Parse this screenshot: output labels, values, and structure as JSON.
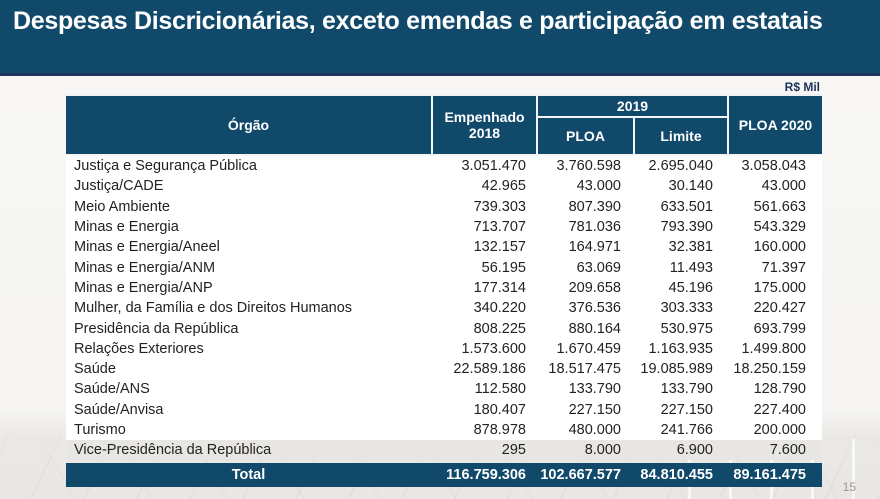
{
  "title": "Despesas Discricionárias, exceto emendas e participação em estatais",
  "unit_label": "R$ Mil",
  "page_number": "15",
  "colors": {
    "accent_blue": "#11496b",
    "title_border": "#1f3459",
    "last_row_bg": "#e8e6e3"
  },
  "table": {
    "headers": {
      "orgao": "Órgão",
      "empenhado_2018": "Empenhado 2018",
      "year_2019": "2019",
      "ploa": "PLOA",
      "limite": "Limite",
      "ploa_2020": "PLOA 2020"
    },
    "rows": [
      {
        "orgao": "Justiça e Segurança Pública",
        "empenhado_2018": "3.051.470",
        "ploa_2019": "3.760.598",
        "limite_2019": "2.695.040",
        "ploa_2020": "3.058.043"
      },
      {
        "orgao": "Justiça/CADE",
        "empenhado_2018": "42.965",
        "ploa_2019": "43.000",
        "limite_2019": "30.140",
        "ploa_2020": "43.000"
      },
      {
        "orgao": "Meio Ambiente",
        "empenhado_2018": "739.303",
        "ploa_2019": "807.390",
        "limite_2019": "633.501",
        "ploa_2020": "561.663"
      },
      {
        "orgao": "Minas e Energia",
        "empenhado_2018": "713.707",
        "ploa_2019": "781.036",
        "limite_2019": "793.390",
        "ploa_2020": "543.329"
      },
      {
        "orgao": "Minas e Energia/Aneel",
        "empenhado_2018": "132.157",
        "ploa_2019": "164.971",
        "limite_2019": "32.381",
        "ploa_2020": "160.000"
      },
      {
        "orgao": "Minas e Energia/ANM",
        "empenhado_2018": "56.195",
        "ploa_2019": "63.069",
        "limite_2019": "11.493",
        "ploa_2020": "71.397"
      },
      {
        "orgao": "Minas e Energia/ANP",
        "empenhado_2018": "177.314",
        "ploa_2019": "209.658",
        "limite_2019": "45.196",
        "ploa_2020": "175.000"
      },
      {
        "orgao": "Mulher, da Família e dos Direitos Humanos",
        "empenhado_2018": "340.220",
        "ploa_2019": "376.536",
        "limite_2019": "303.333",
        "ploa_2020": "220.427"
      },
      {
        "orgao": "Presidência da República",
        "empenhado_2018": "808.225",
        "ploa_2019": "880.164",
        "limite_2019": "530.975",
        "ploa_2020": "693.799"
      },
      {
        "orgao": "Relações Exteriores",
        "empenhado_2018": "1.573.600",
        "ploa_2019": "1.670.459",
        "limite_2019": "1.163.935",
        "ploa_2020": "1.499.800"
      },
      {
        "orgao": "Saúde",
        "empenhado_2018": "22.589.186",
        "ploa_2019": "18.517.475",
        "limite_2019": "19.085.989",
        "ploa_2020": "18.250.159"
      },
      {
        "orgao": "Saúde/ANS",
        "empenhado_2018": "112.580",
        "ploa_2019": "133.790",
        "limite_2019": "133.790",
        "ploa_2020": "128.790"
      },
      {
        "orgao": "Saúde/Anvisa",
        "empenhado_2018": "180.407",
        "ploa_2019": "227.150",
        "limite_2019": "227.150",
        "ploa_2020": "227.400"
      },
      {
        "orgao": "Turismo",
        "empenhado_2018": "878.978",
        "ploa_2019": "480.000",
        "limite_2019": "241.766",
        "ploa_2020": "200.000"
      },
      {
        "orgao": "Vice-Presidência da República",
        "empenhado_2018": "295",
        "ploa_2019": "8.000",
        "limite_2019": "6.900",
        "ploa_2020": "7.600"
      }
    ],
    "total": {
      "label": "Total",
      "empenhado_2018": "116.759.306",
      "ploa_2019": "102.667.577",
      "limite_2019": "84.810.455",
      "ploa_2020": "89.161.475"
    }
  }
}
